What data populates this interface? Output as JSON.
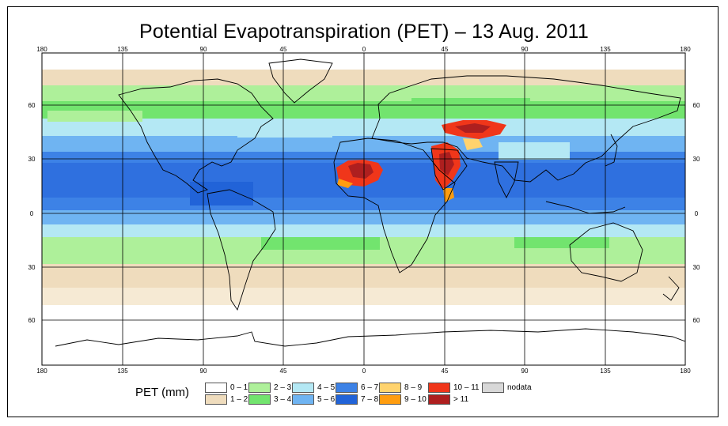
{
  "title": "Potential Evapotranspiration (PET) – 13 Aug. 2011",
  "lon_ticks_top": [
    "180",
    "135",
    "90",
    "45",
    "0",
    "45",
    "90",
    "135",
    "180"
  ],
  "lon_ticks_bottom": [
    "180",
    "135",
    "90",
    "45",
    "0",
    "45",
    "90",
    "135",
    "180"
  ],
  "lat_ticks_left": [
    "60",
    "30",
    "0",
    "30",
    "60"
  ],
  "lat_ticks_right": [
    "60",
    "30",
    "0",
    "30",
    "60"
  ],
  "legend": {
    "label": "PET (mm)",
    "items": [
      {
        "label": "0 – 1",
        "color": "#ffffff"
      },
      {
        "label": "1 – 2",
        "color": "#efdcbd"
      },
      {
        "label": "2 – 3",
        "color": "#aef09a"
      },
      {
        "label": "3 – 4",
        "color": "#72e46e"
      },
      {
        "label": "4 – 5",
        "color": "#b4e8f4"
      },
      {
        "label": "5 – 6",
        "color": "#6fb4f2"
      },
      {
        "label": "6 – 7",
        "color": "#3d82e6"
      },
      {
        "label": "7 – 8",
        "color": "#2163d8"
      },
      {
        "label": "8 – 9",
        "color": "#ffd36e"
      },
      {
        "label": "9 – 10",
        "color": "#ff9d0f"
      },
      {
        "label": "10 – 11",
        "color": "#f0361a"
      },
      {
        "label": "> 11",
        "color": "#ae1f1f"
      },
      {
        "label": "nodata",
        "color": "#d8d8d8"
      }
    ]
  }
}
